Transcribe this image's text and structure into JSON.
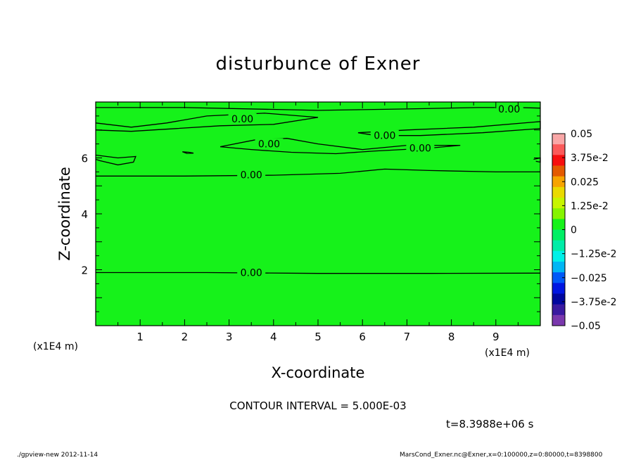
{
  "title": "disturbunce of Exner",
  "contour_interval": "CONTOUR INTERVAL = 5.000E-03",
  "time_label": "t=8.3988e+06 s",
  "footer_left": "./gpview-new  2012-11-14",
  "footer_right": "MarsCond_Exner.nc@Exner,x=0:100000,z=0:80000,t=8398800",
  "colors": {
    "field": "#16f21a",
    "contour": "#000000"
  },
  "chart_data": {
    "type": "contour",
    "title": "disturbunce of Exner",
    "xlabel": "X-coordinate",
    "ylabel": "Z-coordinate",
    "x_unit": "(x1E4 m)",
    "y_unit": "(x1E4 m)",
    "xlim": [
      0,
      10
    ],
    "ylim": [
      0,
      8
    ],
    "x_ticks": [
      1,
      2,
      3,
      4,
      5,
      6,
      7,
      8,
      9
    ],
    "y_ticks": [
      2,
      4,
      6
    ],
    "contour_labels": [
      {
        "x": 3.3,
        "y": 7.4,
        "text": "0.00"
      },
      {
        "x": 3.9,
        "y": 6.5,
        "text": "0.00"
      },
      {
        "x": 3.5,
        "y": 5.4,
        "text": "0.00"
      },
      {
        "x": 6.5,
        "y": 6.8,
        "text": "0.00"
      },
      {
        "x": 7.3,
        "y": 6.35,
        "text": "0.00"
      },
      {
        "x": 9.3,
        "y": 7.75,
        "text": "0.00"
      },
      {
        "x": 3.5,
        "y": 1.9,
        "text": "0.00"
      }
    ],
    "contour_lines": [
      {
        "points": [
          [
            0,
            1.9
          ],
          [
            2.5,
            1.9
          ],
          [
            5,
            1.87
          ],
          [
            7.5,
            1.87
          ],
          [
            10,
            1.88
          ]
        ]
      },
      {
        "points": [
          [
            0,
            5.35
          ],
          [
            2,
            5.35
          ],
          [
            4,
            5.38
          ],
          [
            5.5,
            5.45
          ],
          [
            6.5,
            5.6
          ],
          [
            7.5,
            5.55
          ],
          [
            9,
            5.5
          ],
          [
            10,
            5.5
          ]
        ]
      },
      {
        "points": [
          [
            0,
            7.8
          ],
          [
            2,
            7.8
          ],
          [
            5,
            7.7
          ],
          [
            7,
            7.75
          ],
          [
            8.6,
            7.8
          ],
          [
            9.5,
            7.8
          ],
          [
            10,
            7.78
          ]
        ]
      },
      {
        "points": [
          [
            0,
            7.25
          ],
          [
            0.8,
            7.1
          ],
          [
            1.6,
            7.25
          ],
          [
            2.5,
            7.5
          ],
          [
            3.8,
            7.6
          ],
          [
            5,
            7.45
          ],
          [
            4,
            7.2
          ],
          [
            2.8,
            7.15
          ],
          [
            1.8,
            7.05
          ],
          [
            0.8,
            6.95
          ],
          [
            0,
            7.0
          ]
        ]
      },
      {
        "points": [
          [
            2.8,
            6.4
          ],
          [
            3.6,
            6.65
          ],
          [
            4.3,
            6.7
          ],
          [
            5,
            6.5
          ],
          [
            6,
            6.3
          ],
          [
            7,
            6.45
          ],
          [
            8.2,
            6.45
          ],
          [
            7.5,
            6.35
          ],
          [
            6.3,
            6.25
          ],
          [
            5.4,
            6.15
          ],
          [
            4.4,
            6.2
          ],
          [
            3.5,
            6.3
          ],
          [
            2.8,
            6.4
          ]
        ]
      },
      {
        "points": [
          [
            5.9,
            6.9
          ],
          [
            7,
            7.0
          ],
          [
            8.5,
            7.1
          ],
          [
            10,
            7.3
          ],
          [
            10,
            7.05
          ],
          [
            8.7,
            6.9
          ],
          [
            7.3,
            6.8
          ],
          [
            6.3,
            6.8
          ],
          [
            5.9,
            6.9
          ]
        ]
      },
      {
        "points": [
          [
            0,
            6.1
          ],
          [
            0.5,
            6.0
          ],
          [
            0.9,
            6.05
          ],
          [
            0.85,
            5.85
          ],
          [
            0.5,
            5.75
          ],
          [
            0.1,
            5.9
          ],
          [
            0,
            5.95
          ]
        ]
      },
      {
        "points": [
          [
            1.95,
            6.22
          ],
          [
            2.1,
            6.2
          ],
          [
            2.2,
            6.17
          ],
          [
            2.05,
            6.16
          ],
          [
            1.95,
            6.22
          ]
        ]
      },
      {
        "points": [
          [
            9.85,
            5.95
          ],
          [
            10,
            6.0
          ],
          [
            10,
            5.85
          ],
          [
            9.9,
            5.88
          ]
        ]
      },
      {
        "points": [
          [
            3.1,
            7.28
          ],
          [
            3.22,
            7.3
          ],
          [
            3.15,
            7.38
          ],
          [
            3.1,
            7.28
          ]
        ]
      }
    ],
    "colorbar": {
      "labels": [
        "0.05",
        "3.75e-2",
        "0.025",
        "1.25e-2",
        "0",
        "−1.25e-2",
        "−0.025",
        "−3.75e-2",
        "−0.05"
      ],
      "colors": [
        "#f9a7a7",
        "#fb5a5a",
        "#f70f0f",
        "#e45a00",
        "#f7a400",
        "#eada00",
        "#c7f500",
        "#86f400",
        "#16f21a",
        "#00ef64",
        "#00eda8",
        "#00f0e8",
        "#00b6f4",
        "#0059f7",
        "#0016e1",
        "#00079f",
        "#3a1aa0",
        "#7a38ad"
      ]
    }
  }
}
